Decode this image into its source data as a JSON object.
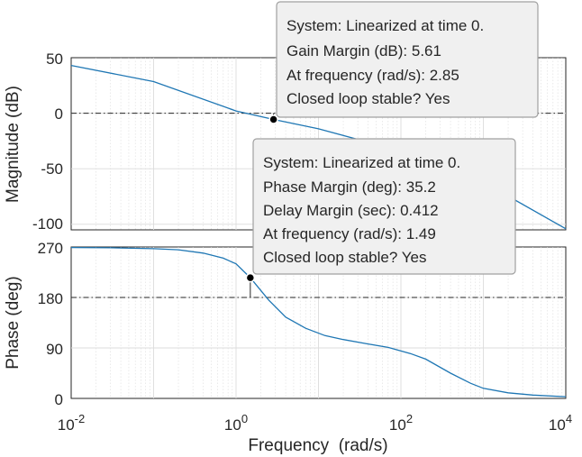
{
  "chart_data": [
    {
      "type": "line",
      "panel": "magnitude",
      "ylabel": "Magnitude (dB)",
      "xscale": "log",
      "xlim": [
        0.01,
        10000
      ],
      "ylim": [
        -105,
        50
      ],
      "yticks": [
        50,
        0,
        -50,
        -100
      ],
      "grid": true,
      "reference_line": {
        "y": 0,
        "style": "dash-dot"
      },
      "series": [
        {
          "x": [
            0.01,
            0.1,
            1,
            2.85,
            10,
            100,
            1000,
            10000
          ],
          "y": [
            43,
            28.5,
            2,
            -5.61,
            -14,
            -34,
            -62,
            -104
          ]
        }
      ],
      "marker": {
        "x": 2.85,
        "y": -5.61
      },
      "annotation": {
        "lines": [
          "System: Linearized at time 0.",
          "Gain Margin (dB): 5.61",
          "At frequency (rad/s): 2.85",
          "Closed loop stable? Yes"
        ]
      }
    },
    {
      "type": "line",
      "panel": "phase",
      "ylabel": "Phase (deg)",
      "xlabel": "Frequency  (rad/s)",
      "xscale": "log",
      "xlim": [
        0.01,
        10000
      ],
      "ylim": [
        0,
        270
      ],
      "yticks": [
        270,
        180,
        90,
        0
      ],
      "xticks": [
        "10^-2",
        "10^0",
        "10^2",
        "10^4"
      ],
      "grid": true,
      "reference_line": {
        "y": 180,
        "style": "dash-dot"
      },
      "series": [
        {
          "x": [
            0.01,
            0.03,
            0.1,
            0.2,
            0.4,
            0.7,
            1,
            1.49,
            2.5,
            4,
            7,
            12,
            20,
            40,
            70,
            130,
            200,
            400,
            700,
            1000,
            2000,
            4000,
            10000
          ],
          "y": [
            269,
            268.5,
            267,
            265,
            259,
            250,
            240,
            215.2,
            175,
            145,
            125,
            112,
            105,
            97,
            91,
            80,
            70,
            45,
            27,
            18,
            10,
            6,
            3
          ]
        }
      ],
      "marker": {
        "x": 1.49,
        "y": 215.2
      },
      "annotation": {
        "lines": [
          "System: Linearized at time 0.",
          "Phase Margin (deg): 35.2",
          "Delay Margin (sec): 0.412",
          "At frequency (rad/s): 1.49",
          "Closed loop stable? Yes"
        ]
      }
    }
  ],
  "tick_labels": {
    "mag_y": [
      "50",
      "0",
      "-50",
      "-100"
    ],
    "phase_y": [
      "270",
      "180",
      "90",
      "0"
    ],
    "x": [
      {
        "base": "10",
        "exp": "-2"
      },
      {
        "base": "10",
        "exp": "0"
      },
      {
        "base": "10",
        "exp": "2"
      },
      {
        "base": "10",
        "exp": "4"
      }
    ]
  },
  "colors": {
    "line": "#1f77b4",
    "grid": "#dcdcdc",
    "axis": "#262626",
    "tip_border": "#a0a0a0",
    "tip_bg": "#f0f0f0"
  }
}
